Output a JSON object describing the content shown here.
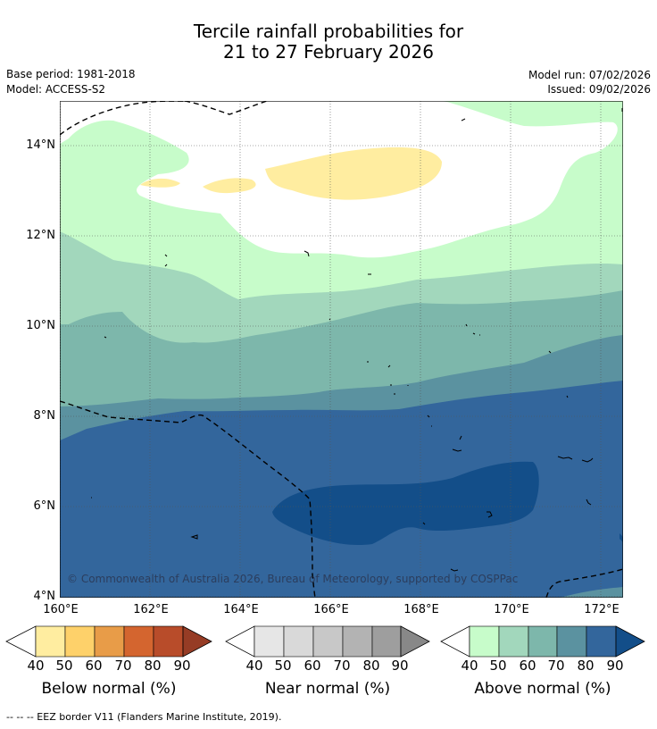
{
  "header": {
    "title_line1": "Tercile rainfall probabilities for",
    "title_line2": "21 to 27 February 2026",
    "base_period": "Base period: 1981-2018",
    "model": "Model: ACCESS-S2",
    "model_run": "Model run: 07/02/2026",
    "issued": "Issued: 09/02/2026"
  },
  "map": {
    "lat_labels": [
      "14°N",
      "12°N",
      "10°N",
      "8°N",
      "6°N",
      "4°N"
    ],
    "lon_labels": [
      "160°E",
      "162°E",
      "164°E",
      "166°E",
      "168°E",
      "170°E",
      "172°E"
    ],
    "lat_range_deg": [
      4,
      15
    ],
    "lon_range_deg": [
      160,
      172.5
    ],
    "copyright": "© Commonwealth of Australia 2026, Bureau of Meteorology, supported by COSPPac"
  },
  "colorbars": [
    {
      "title": "Below normal (%)",
      "ticks": [
        "40",
        "50",
        "60",
        "70",
        "80",
        "90"
      ],
      "colors": [
        "#ffeda0",
        "#fed16a",
        "#e89c48",
        "#d4652f",
        "#b84c2a",
        "#963c25"
      ]
    },
    {
      "title": "Near normal (%)",
      "ticks": [
        "40",
        "50",
        "60",
        "70",
        "80",
        "90"
      ],
      "colors": [
        "#e6e6e6",
        "#d9d9d9",
        "#c8c8c8",
        "#b3b3b3",
        "#9e9e9e",
        "#888888"
      ]
    },
    {
      "title": "Above normal (%)",
      "ticks": [
        "40",
        "50",
        "60",
        "70",
        "80",
        "90"
      ],
      "colors": [
        "#c7fcca",
        "#a2d7bc",
        "#7db7ab",
        "#5b92a0",
        "#33669c",
        "#134e89"
      ]
    }
  ],
  "footnote": "-- -- -- EEZ border V11 (Flanders Marine Institute, 2019)."
}
